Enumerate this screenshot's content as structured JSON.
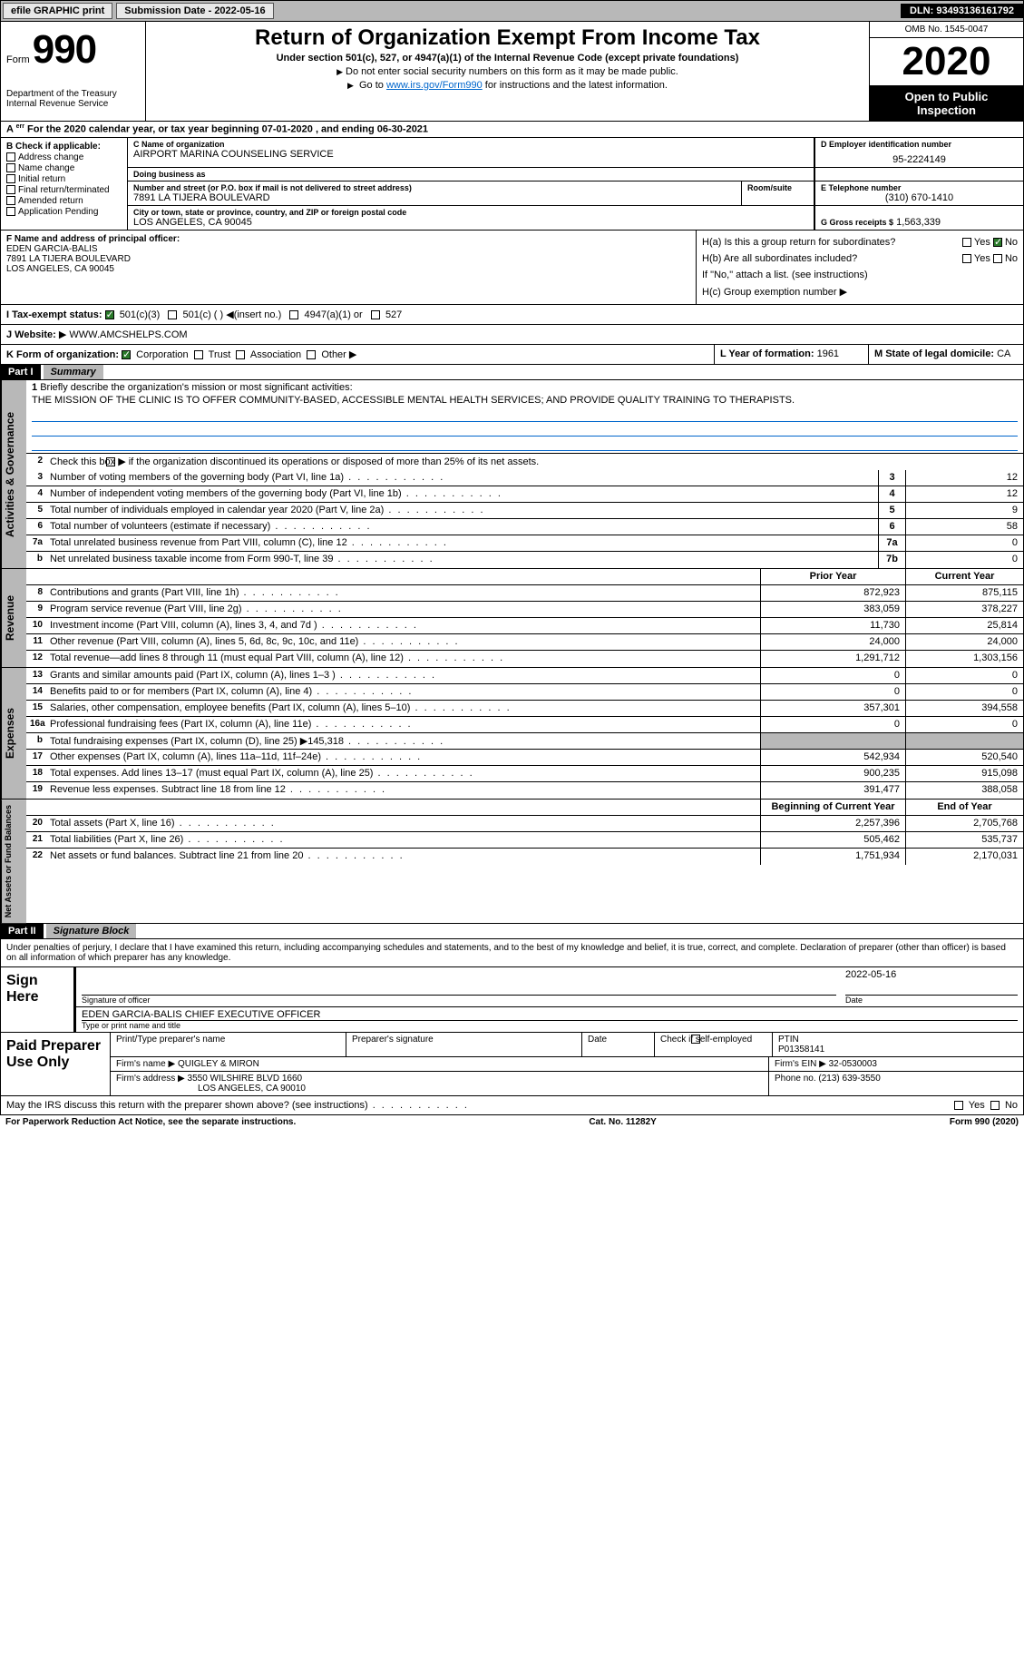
{
  "topbar": {
    "efile_label": "efile GRAPHIC print",
    "submission_label": "Submission Date - 2022-05-16",
    "dln": "DLN: 93493136161792"
  },
  "header": {
    "form_label": "Form",
    "form_number": "990",
    "title": "Return of Organization Exempt From Income Tax",
    "subtitle": "Under section 501(c), 527, or 4947(a)(1) of the Internal Revenue Code (except private foundations)",
    "ssn_line": "Do not enter social security numbers on this form as it may be made public.",
    "goto_prefix": "Go to ",
    "goto_link": "www.irs.gov/Form990",
    "goto_suffix": " for instructions and the latest information.",
    "department": "Department of the Treasury",
    "irs": "Internal Revenue Service",
    "omb": "OMB No. 1545-0047",
    "year": "2020",
    "inspection_line1": "Open to Public",
    "inspection_line2": "Inspection"
  },
  "period": {
    "text": "For the 2020 calendar year, or tax year beginning 07-01-2020     , and ending 06-30-2021",
    "prefix": "A"
  },
  "box_b": {
    "title": "B Check if applicable:",
    "opts": [
      "Address change",
      "Name change",
      "Initial return",
      "Final return/terminated",
      "Amended return",
      "Application Pending"
    ]
  },
  "box_c": {
    "name_label": "C Name of organization",
    "name": "AIRPORT MARINA COUNSELING SERVICE",
    "dba_label": "Doing business as",
    "dba": "",
    "street_label": "Number and street (or P.O. box if mail is not delivered to street address)",
    "room_label": "Room/suite",
    "street": "7891 LA TIJERA BOULEVARD",
    "city_label": "City or town, state or province, country, and ZIP or foreign postal code",
    "city": "LOS ANGELES, CA  90045"
  },
  "box_d": {
    "label": "D Employer identification number",
    "value": "95-2224149"
  },
  "box_e": {
    "label": "E Telephone number",
    "value": "(310) 670-1410"
  },
  "box_g": {
    "label": "G Gross receipts $",
    "value": "1,563,339"
  },
  "box_f": {
    "label": "F Name and address of principal officer:",
    "name": "EDEN GARCIA-BALIS",
    "street": "7891 LA TIJERA BOULEVARD",
    "city": "LOS ANGELES, CA  90045"
  },
  "box_h": {
    "a_label": "H(a)  Is this a group return for",
    "a_label2": "subordinates?",
    "a_yes": "Yes",
    "a_no": "No",
    "b_label": "H(b)  Are all subordinates included?",
    "b_yes": "Yes",
    "b_no": "No",
    "b_note": "If \"No,\" attach a list. (see instructions)",
    "c_label": "H(c)  Group exemption number",
    "c_arrow": "▶"
  },
  "box_i": {
    "label": "I  Tax-exempt status:",
    "opt1": "501(c)(3)",
    "opt2": "501(c) (  )",
    "opt2_suffix": "(insert no.)",
    "opt3": "4947(a)(1) or",
    "opt4": "527"
  },
  "box_j": {
    "label": "J  Website:",
    "arrow": "▶",
    "value": "WWW.AMCSHELPS.COM"
  },
  "box_k": {
    "label": "K Form of organization:",
    "opts": [
      "Corporation",
      "Trust",
      "Association",
      "Other"
    ],
    "arrow": "▶"
  },
  "box_l": {
    "label": "L Year of formation:",
    "value": "1961"
  },
  "box_m": {
    "label": "M State of legal domicile:",
    "value": "CA"
  },
  "part1": {
    "num": "Part I",
    "title": "Summary"
  },
  "governance": {
    "label": "Activities & Governance",
    "line1_num": "1",
    "line1_text": "Briefly describe the organization's mission or most significant activities:",
    "mission": "THE MISSION OF THE CLINIC IS TO OFFER COMMUNITY-BASED, ACCESSIBLE MENTAL HEALTH SERVICES; AND PROVIDE QUALITY TRAINING TO THERAPISTS.",
    "line2_num": "2",
    "line2_text": "Check this box ▶       if the organization discontinued its operations or disposed of more than 25% of its net assets.",
    "rows": [
      {
        "num": "3",
        "text": "Number of voting members of the governing body (Part VI, line 1a)",
        "box": "3",
        "val": "12"
      },
      {
        "num": "4",
        "text": "Number of independent voting members of the governing body (Part VI, line 1b)",
        "box": "4",
        "val": "12"
      },
      {
        "num": "5",
        "text": "Total number of individuals employed in calendar year 2020 (Part V, line 2a)",
        "box": "5",
        "val": "9"
      },
      {
        "num": "6",
        "text": "Total number of volunteers (estimate if necessary)",
        "box": "6",
        "val": "58"
      },
      {
        "num": "7a",
        "text": "Total unrelated business revenue from Part VIII, column (C), line 12",
        "box": "7a",
        "val": "0"
      },
      {
        "num": "b",
        "text": "Net unrelated business taxable income from Form 990-T, line 39",
        "box": "7b",
        "val": "0"
      }
    ]
  },
  "revenue": {
    "label": "Revenue",
    "prior_hdr": "Prior Year",
    "current_hdr": "Current Year",
    "rows": [
      {
        "num": "8",
        "text": "Contributions and grants (Part VIII, line 1h)",
        "prior": "872,923",
        "current": "875,115"
      },
      {
        "num": "9",
        "text": "Program service revenue (Part VIII, line 2g)",
        "prior": "383,059",
        "current": "378,227"
      },
      {
        "num": "10",
        "text": "Investment income (Part VIII, column (A), lines 3, 4, and 7d )",
        "prior": "11,730",
        "current": "25,814"
      },
      {
        "num": "11",
        "text": "Other revenue (Part VIII, column (A), lines 5, 6d, 8c, 9c, 10c, and 11e)",
        "prior": "24,000",
        "current": "24,000"
      },
      {
        "num": "12",
        "text": "Total revenue—add lines 8 through 11 (must equal Part VIII, column (A), line 12)",
        "prior": "1,291,712",
        "current": "1,303,156"
      }
    ]
  },
  "expenses": {
    "label": "Expenses",
    "rows": [
      {
        "num": "13",
        "text": "Grants and similar amounts paid (Part IX, column (A), lines 1–3 )",
        "prior": "0",
        "current": "0"
      },
      {
        "num": "14",
        "text": "Benefits paid to or for members (Part IX, column (A), line 4)",
        "prior": "0",
        "current": "0"
      },
      {
        "num": "15",
        "text": "Salaries, other compensation, employee benefits (Part IX, column (A), lines 5–10)",
        "prior": "357,301",
        "current": "394,558"
      },
      {
        "num": "16a",
        "text": "Professional fundraising fees (Part IX, column (A), line 11e)",
        "prior": "0",
        "current": "0"
      },
      {
        "num": "b",
        "text": "Total fundraising expenses (Part IX, column (D), line 25) ▶145,318",
        "prior": "",
        "current": "",
        "grey": true
      },
      {
        "num": "17",
        "text": "Other expenses (Part IX, column (A), lines 11a–11d, 11f–24e)",
        "prior": "542,934",
        "current": "520,540"
      },
      {
        "num": "18",
        "text": "Total expenses. Add lines 13–17 (must equal Part IX, column (A), line 25)",
        "prior": "900,235",
        "current": "915,098"
      },
      {
        "num": "19",
        "text": "Revenue less expenses. Subtract line 18 from line 12",
        "prior": "391,477",
        "current": "388,058"
      }
    ]
  },
  "netassets": {
    "label": "Net Assets or Fund Balances",
    "begin_hdr": "Beginning of Current Year",
    "end_hdr": "End of Year",
    "rows": [
      {
        "num": "20",
        "text": "Total assets (Part X, line 16)",
        "prior": "2,257,396",
        "current": "2,705,768"
      },
      {
        "num": "21",
        "text": "Total liabilities (Part X, line 26)",
        "prior": "505,462",
        "current": "535,737"
      },
      {
        "num": "22",
        "text": "Net assets or fund balances. Subtract line 21 from line 20",
        "prior": "1,751,934",
        "current": "2,170,031"
      }
    ]
  },
  "part2": {
    "num": "Part II",
    "title": "Signature Block"
  },
  "penalties": "Under penalties of perjury, I declare that I have examined this return, including accompanying schedules and statements, and to the best of my knowledge and belief, it is true, correct, and complete. Declaration of preparer (other than officer) is based on all information of which preparer has any knowledge.",
  "sign": {
    "label": "Sign Here",
    "sig_label": "Signature of officer",
    "date_label": "Date",
    "date_value": "2022-05-16",
    "name_value": "EDEN GARCIA-BALIS  CHIEF EXECUTIVE OFFICER",
    "name_label": "Type or print name and title"
  },
  "preparer": {
    "label": "Paid Preparer Use Only",
    "print_label": "Print/Type preparer's name",
    "sig_label": "Preparer's signature",
    "date_label": "Date",
    "check_label": "Check         if self-employed",
    "ptin_label": "PTIN",
    "ptin_value": "P01358141",
    "firm_name_label": "Firm's name    ▶",
    "firm_name": "QUIGLEY & MIRON",
    "firm_ein_label": "Firm's EIN ▶",
    "firm_ein": "32-0530003",
    "firm_addr_label": "Firm's address ▶",
    "firm_addr1": "3550 WILSHIRE BLVD 1660",
    "firm_addr2": "LOS ANGELES, CA  90010",
    "phone_label": "Phone no.",
    "phone": "(213) 639-3550"
  },
  "discuss": {
    "text": "May the IRS discuss this return with the preparer shown above? (see instructions)",
    "yes": "Yes",
    "no": "No"
  },
  "footer": {
    "left": "For Paperwork Reduction Act Notice, see the separate instructions.",
    "mid": "Cat. No. 11282Y",
    "right": "Form 990 (2020)"
  }
}
